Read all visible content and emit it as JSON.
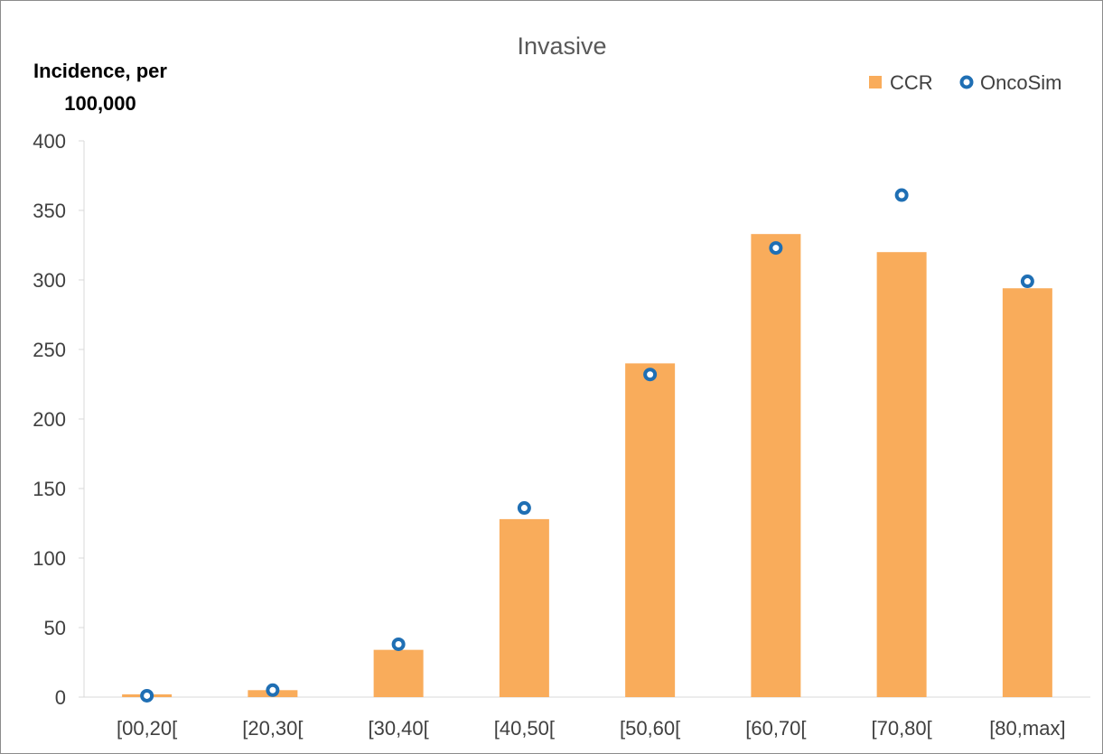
{
  "chart_data": {
    "type": "bar",
    "title": "Invasive",
    "ylabel_lines": [
      "Incidence, per",
      "100,000"
    ],
    "xlabel": "",
    "categories": [
      "[00,20[",
      "[20,30[",
      "[30,40[",
      "[40,50[",
      "[50,60[",
      "[60,70[",
      "[70,80[",
      "[80,max]"
    ],
    "series": [
      {
        "name": "CCR",
        "kind": "bar",
        "color": "#F9AC5B",
        "values": [
          2,
          5,
          34,
          128,
          240,
          333,
          320,
          294
        ]
      },
      {
        "name": "OncoSim",
        "kind": "marker-hollow-circle",
        "color": "#1F6FB4",
        "values": [
          1,
          5,
          38,
          136,
          232,
          323,
          361,
          299
        ]
      }
    ],
    "ylim": [
      0,
      400
    ],
    "yticks": [
      0,
      50,
      100,
      150,
      200,
      250,
      300,
      350,
      400
    ],
    "grid": false,
    "legend_position": "top-right"
  }
}
